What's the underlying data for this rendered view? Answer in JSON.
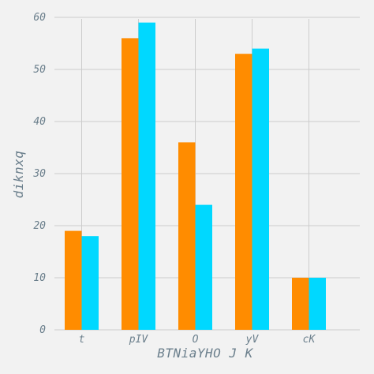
{
  "chart_data": {
    "type": "bar",
    "title": "",
    "xlabel": "BTNiaYHO J K",
    "ylabel": "diknxq",
    "categories": [
      "t",
      "pIV",
      "O",
      "yV",
      "cK"
    ],
    "series": [
      {
        "values": [
          19,
          56,
          36,
          53,
          10
        ],
        "color": "#ff8c00"
      },
      {
        "values": [
          18,
          59,
          24,
          54,
          10
        ],
        "color": "#00d8ff"
      }
    ],
    "ylim": [
      0,
      60
    ],
    "yticks": [
      "0",
      "10",
      "20",
      "30",
      "40",
      "50",
      "60"
    ],
    "grid": true,
    "legend": "none"
  }
}
